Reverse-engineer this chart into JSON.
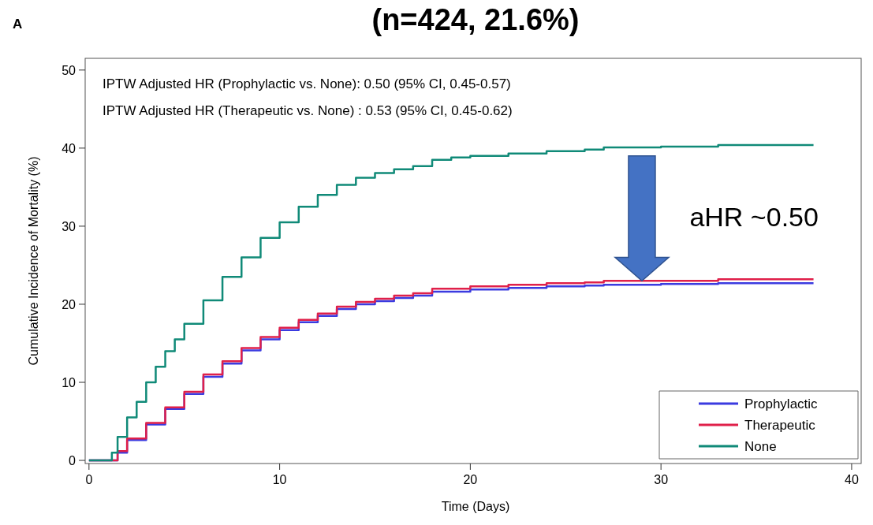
{
  "chart_data": {
    "type": "step",
    "title": "(n=424, 21.6%)",
    "xlabel": "Time (Days)",
    "ylabel": "Cumulative Incidence of Mortality (%)",
    "annotations": [
      "A",
      "IPTW Adjusted HR (Prophylactic vs. None): 0.50 (95% CI, 0.45-0.57)",
      "IPTW Adjusted HR (Therapeutic vs. None) : 0.53 (95% CI, 0.45-0.62)",
      "aHR ~0.50"
    ],
    "xlim": [
      -0.2,
      40.5
    ],
    "ylim": [
      -0.4,
      51.5
    ],
    "xticks": [
      0,
      10,
      20,
      30,
      40
    ],
    "yticks": [
      0,
      10,
      20,
      30,
      40,
      50
    ],
    "grid": false,
    "legend": "bottom right",
    "line_style": "solid",
    "marker": "none",
    "series": [
      {
        "name": "Prophylactic",
        "color": "#3b3be0",
        "x": [
          0,
          1.2,
          1.5,
          2,
          3,
          4,
          5,
          6,
          7,
          8,
          9,
          10,
          11,
          12,
          13,
          14,
          15,
          16,
          17,
          18,
          20,
          22,
          24,
          26,
          27,
          30,
          33,
          38
        ],
        "values": [
          0,
          0,
          1,
          2.6,
          4.6,
          6.6,
          8.5,
          10.7,
          12.4,
          14.1,
          15.5,
          16.7,
          17.7,
          18.5,
          19.4,
          20,
          20.4,
          20.8,
          21.1,
          21.6,
          21.9,
          22.1,
          22.3,
          22.4,
          22.5,
          22.6,
          22.7,
          22.7
        ]
      },
      {
        "name": "Therapeutic",
        "color": "#e0204a",
        "x": [
          0,
          1.2,
          1.5,
          2,
          3,
          4,
          5,
          6,
          7,
          8,
          9,
          10,
          11,
          12,
          13,
          14,
          15,
          16,
          17,
          18,
          20,
          22,
          24,
          26,
          27,
          30,
          33,
          38
        ],
        "values": [
          0,
          0,
          1.2,
          2.8,
          4.8,
          6.8,
          8.8,
          11,
          12.7,
          14.4,
          15.8,
          17,
          18,
          18.8,
          19.7,
          20.3,
          20.7,
          21.1,
          21.4,
          22,
          22.3,
          22.5,
          22.7,
          22.8,
          23,
          23,
          23.2,
          23.2
        ]
      },
      {
        "name": "None",
        "color": "#108a78",
        "x": [
          0,
          1,
          1.2,
          1.5,
          2,
          2.5,
          3,
          3.5,
          4,
          4.5,
          5,
          6,
          7,
          8,
          9,
          10,
          11,
          12,
          13,
          14,
          15,
          16,
          17,
          18,
          19,
          20,
          22,
          24,
          26,
          27,
          30,
          33,
          38
        ],
        "values": [
          0,
          0,
          1,
          3,
          5.5,
          7.5,
          10,
          12,
          14,
          15.5,
          17.5,
          20.5,
          23.5,
          26,
          28.5,
          30.5,
          32.5,
          34,
          35.3,
          36.2,
          36.8,
          37.3,
          37.7,
          38.5,
          38.8,
          39,
          39.3,
          39.6,
          39.8,
          40.1,
          40.2,
          40.4,
          40.4
        ]
      }
    ]
  }
}
